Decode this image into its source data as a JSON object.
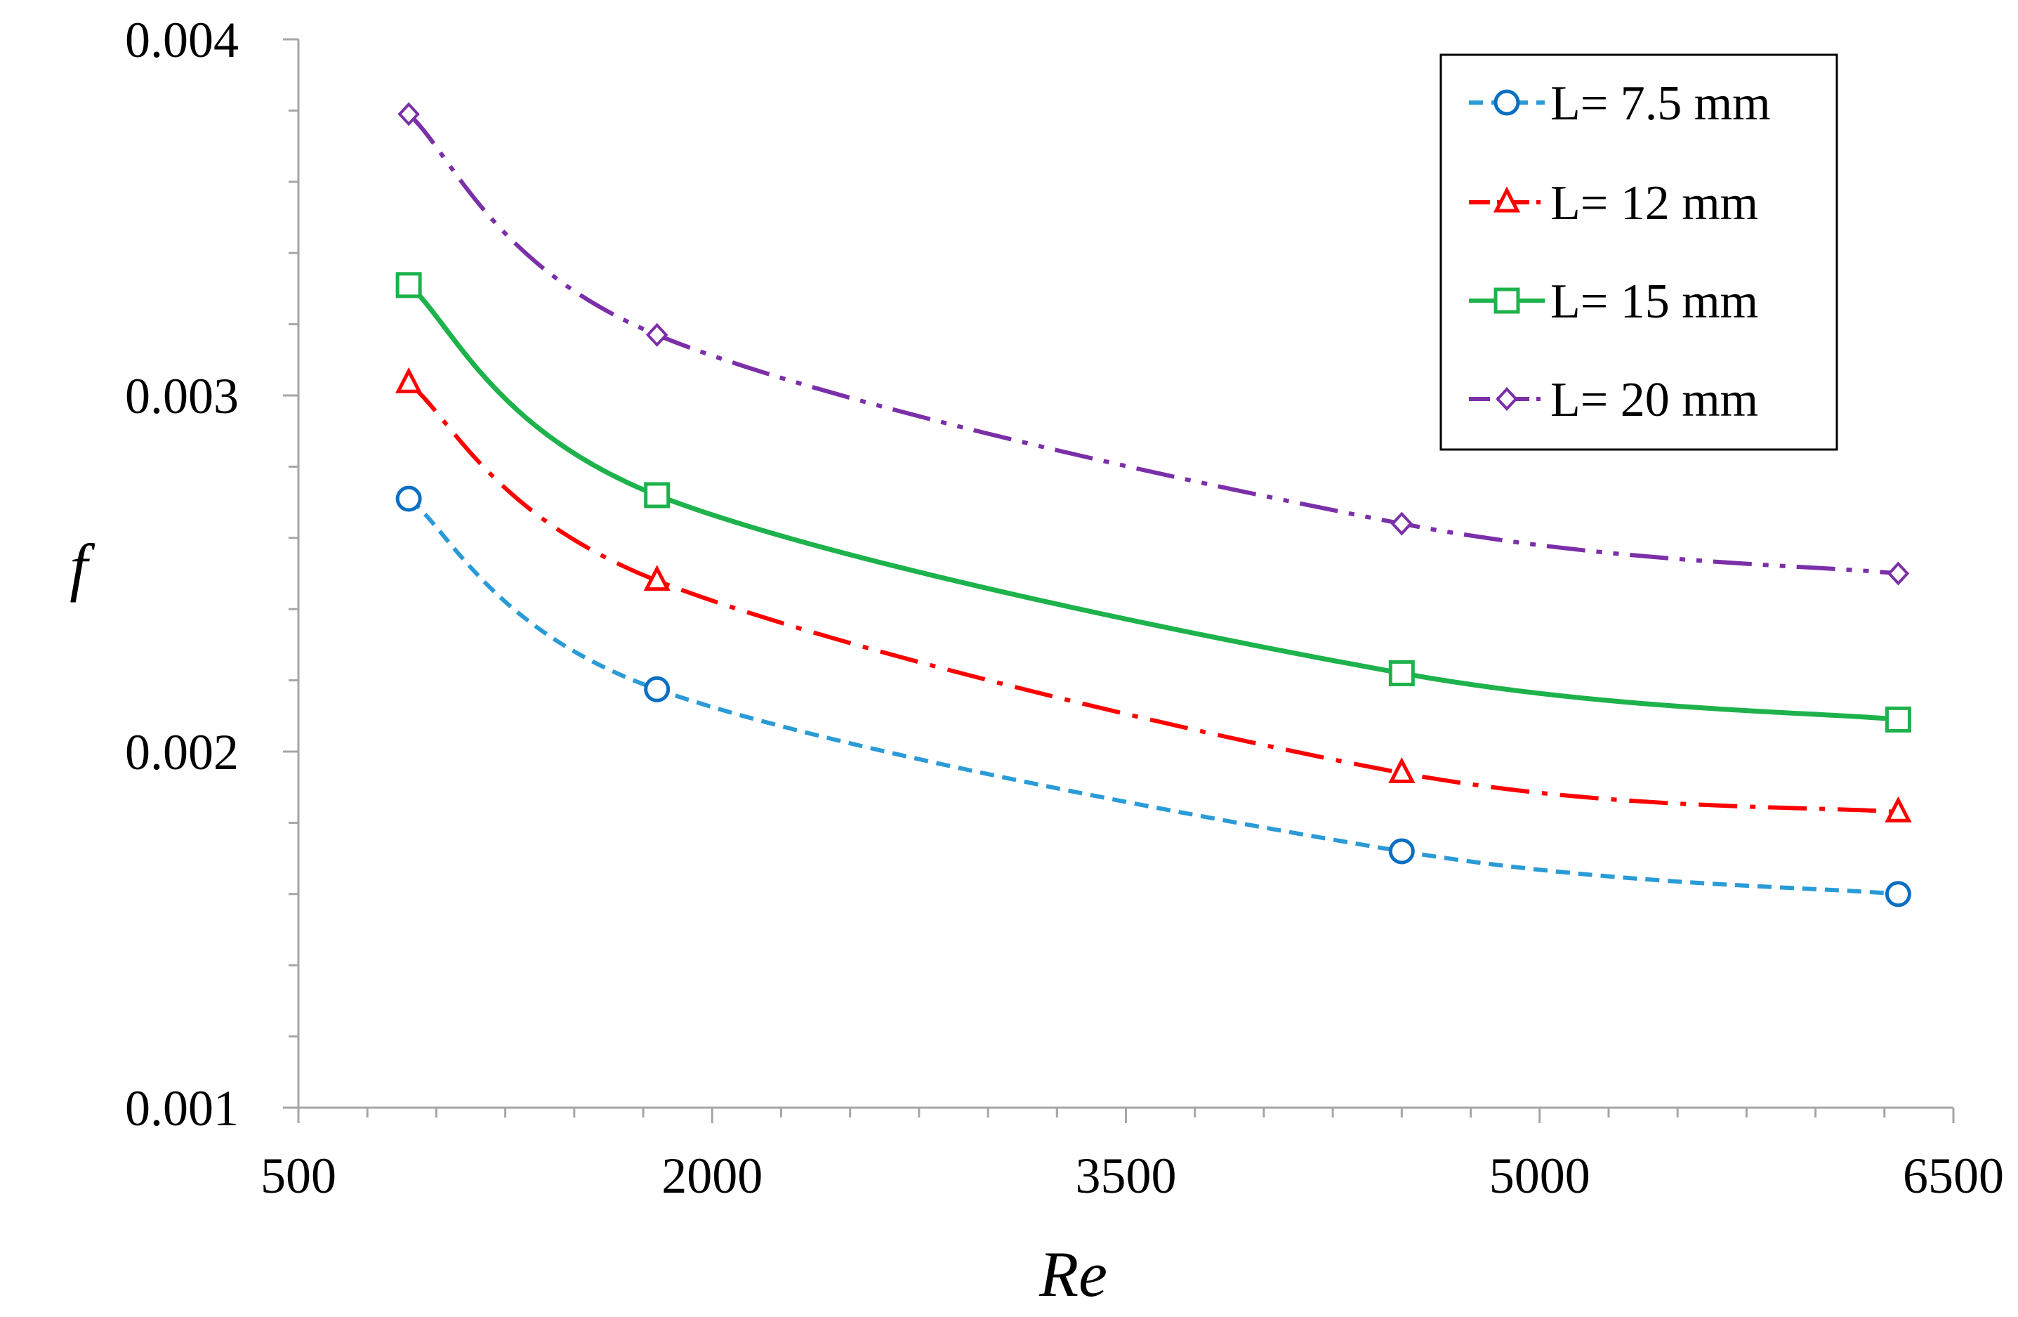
{
  "chart_data": {
    "type": "line",
    "xlabel": "Re",
    "ylabel": "f",
    "xlim": [
      500,
      6500
    ],
    "ylim": [
      0.001,
      0.004
    ],
    "x_ticks": [
      "500",
      "2000",
      "3500",
      "5000",
      "6500"
    ],
    "y_ticks": [
      "0.001",
      "0.002",
      "0.003",
      "0.004"
    ],
    "legend_position": "top-right",
    "series": [
      {
        "name": "L= 7.5 mm",
        "color": "#2a9bd6",
        "marker_color": "#0a6fc2",
        "marker": "circle",
        "line_style": "dashed",
        "x": [
          900,
          1800,
          4500,
          6300
        ],
        "y": [
          0.00271,
          0.002175,
          0.00172,
          0.0016
        ]
      },
      {
        "name": "L= 12 mm",
        "color": "#ff0000",
        "marker_color": "#ff0000",
        "marker": "triangle",
        "line_style": "dash-dot",
        "x": [
          900,
          1800,
          4500,
          6300
        ],
        "y": [
          0.003035,
          0.00248,
          0.00194,
          0.00183
        ]
      },
      {
        "name": "L= 15 mm",
        "color": "#1db24b",
        "marker_color": "#1db24b",
        "marker": "square",
        "line_style": "solid",
        "x": [
          900,
          1800,
          4500,
          6300
        ],
        "y": [
          0.00331,
          0.00272,
          0.00222,
          0.00209
        ]
      },
      {
        "name": "L= 20 mm",
        "color": "#7b2fa8",
        "marker_color": "#7b2fa8",
        "marker": "diamond",
        "line_style": "dash-dot-dot",
        "x": [
          900,
          1800,
          4500,
          6300
        ],
        "y": [
          0.00379,
          0.00317,
          0.00264,
          0.0025
        ]
      }
    ]
  }
}
